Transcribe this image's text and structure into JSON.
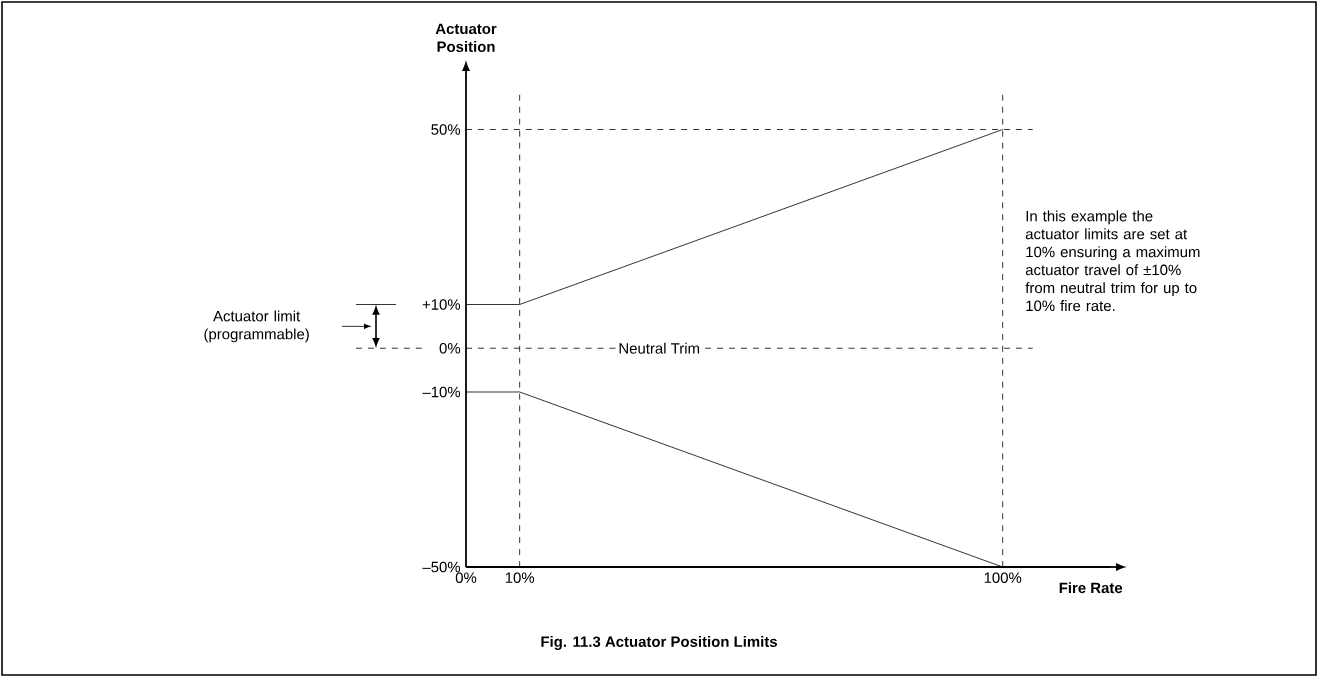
{
  "chart_data": {
    "type": "line",
    "title": "Fig. 11.3 Actuator Position Limits",
    "xlabel": "Fire Rate",
    "ylabel": "Actuator Position",
    "x": [
      0,
      10,
      100
    ],
    "series": [
      {
        "values": [
          10,
          10,
          50
        ],
        "color": "#000000"
      },
      {
        "values": [
          -10,
          -10,
          -50
        ],
        "color": "#000000"
      }
    ],
    "xlim": [
      0,
      120
    ],
    "ylim": [
      -50,
      62
    ],
    "xticks": [
      {
        "value": 0,
        "label": "0%"
      },
      {
        "value": 10,
        "label": "10%"
      },
      {
        "value": 100,
        "label": "100%"
      }
    ],
    "yticks": [
      {
        "value": -50,
        "label": "–50%"
      },
      {
        "value": -10,
        "label": "–10%"
      },
      {
        "value": 0,
        "label": "0%"
      },
      {
        "value": 10,
        "label": "+10%"
      },
      {
        "value": 50,
        "label": "50%"
      }
    ],
    "ref_lines": [
      {
        "axis": "y",
        "value": 50,
        "line_style": "dashed"
      },
      {
        "axis": "y",
        "value": 0,
        "label": "Neutral Trim",
        "line_style": "dashed"
      },
      {
        "axis": "x",
        "value": 10,
        "line_style": "dashed"
      },
      {
        "axis": "x",
        "value": 100,
        "line_style": "dashed"
      }
    ],
    "annotations": [
      "Actuator limit (programmable)",
      "In this example the actuator limits are set at 10% ensuring a maximum actuator travel of ±10% from neutral trim for up to 10% fire rate."
    ],
    "grid": false,
    "marker": "none",
    "line_style": "solid"
  }
}
